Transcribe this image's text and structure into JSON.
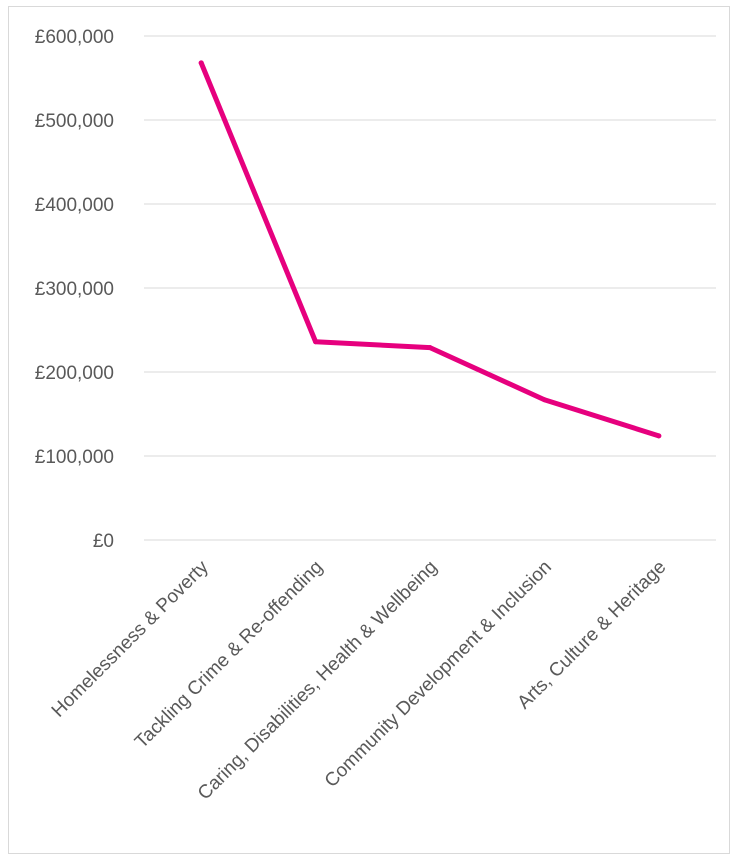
{
  "chart_data": {
    "type": "line",
    "title": "",
    "xlabel": "",
    "ylabel": "",
    "categories": [
      "Homelessness & Poverty",
      "Tackling Crime & Re-offending",
      "Caring, Disabilities, Health & Wellbeing",
      "Community Development & Inclusion",
      "Arts, Culture & Heritage"
    ],
    "series": [
      {
        "values": [
          568000,
          236000,
          229000,
          167000,
          124000
        ]
      }
    ],
    "ylim": [
      0,
      600000
    ],
    "yticks": [
      0,
      100000,
      200000,
      300000,
      400000,
      500000,
      600000
    ],
    "ytick_labels": [
      "£0",
      "£100,000",
      "£200,000",
      "£300,000",
      "£400,000",
      "£500,000",
      "£600,000"
    ],
    "grid": true,
    "legend": "none",
    "line_color": "#e6007e"
  }
}
